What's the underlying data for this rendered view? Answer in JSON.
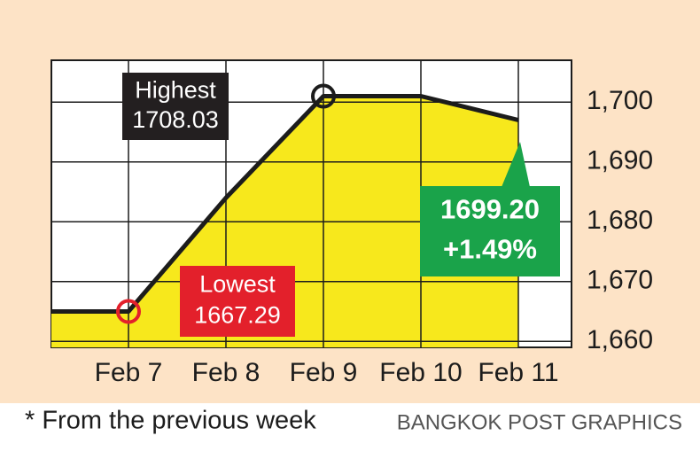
{
  "chart_data": {
    "type": "line",
    "categories": [
      null,
      "Feb 7",
      "Feb 8",
      "Feb 9",
      "Feb 10",
      "Feb 11"
    ],
    "series": [
      {
        "values": [
          1665,
          1665,
          1684,
          1701,
          1701,
          1697
        ],
        "color": "#1c1c1c",
        "fill": "#f7e81c"
      }
    ],
    "ylim": [
      1659,
      1707
    ],
    "yticks": [
      {
        "value": 1660,
        "label": "1,660"
      },
      {
        "value": 1670,
        "label": "1,670"
      },
      {
        "value": 1680,
        "label": "1,680"
      },
      {
        "value": 1690,
        "label": "1,690"
      },
      {
        "value": 1700,
        "label": "1,700"
      }
    ],
    "grid": true,
    "annotations": [
      {
        "lines": [
          "Highest",
          "1708.03"
        ],
        "color": "#231f20"
      },
      {
        "lines": [
          "Lowest",
          "1667.29"
        ],
        "color": "#e3202b"
      },
      {
        "lines": [
          "1699.20",
          "+1.49%"
        ],
        "color": "#1aa34a"
      }
    ],
    "note": "* From the previous week",
    "credit": "BANGKOK POST GRAPHICS"
  }
}
